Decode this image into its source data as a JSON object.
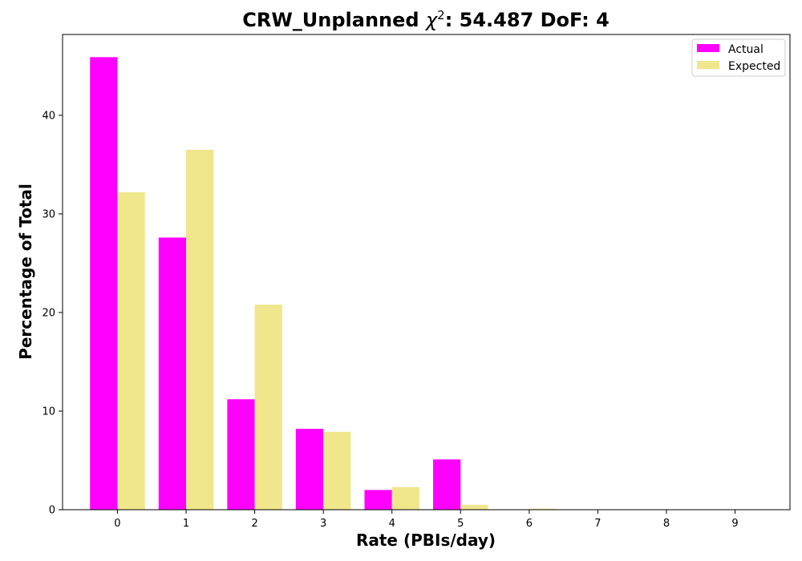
{
  "chart_data": {
    "type": "bar",
    "title": {
      "prefix": "CRW_Unplanned ",
      "symbol": "χ",
      "superscript": "2",
      "suffix": ": 54.487 DoF: 4"
    },
    "xlabel": "Rate (PBIs/day)",
    "ylabel": "Percentage of Total",
    "categories": [
      "0",
      "1",
      "2",
      "3",
      "4",
      "5",
      "6",
      "7",
      "8",
      "9"
    ],
    "y_ticks": [
      "0",
      "10",
      "20",
      "30",
      "40"
    ],
    "ylim": [
      0,
      48.2
    ],
    "legend_position": "top-right",
    "series": [
      {
        "name": "Actual",
        "color": "#ff00ff",
        "values": [
          45.9,
          27.6,
          11.2,
          8.2,
          2.0,
          5.1,
          0,
          0,
          0,
          0
        ]
      },
      {
        "name": "Expected",
        "color": "#f0e68c",
        "values": [
          32.2,
          36.5,
          20.8,
          7.9,
          2.3,
          0.5,
          0.1,
          0,
          0,
          0
        ]
      }
    ]
  }
}
